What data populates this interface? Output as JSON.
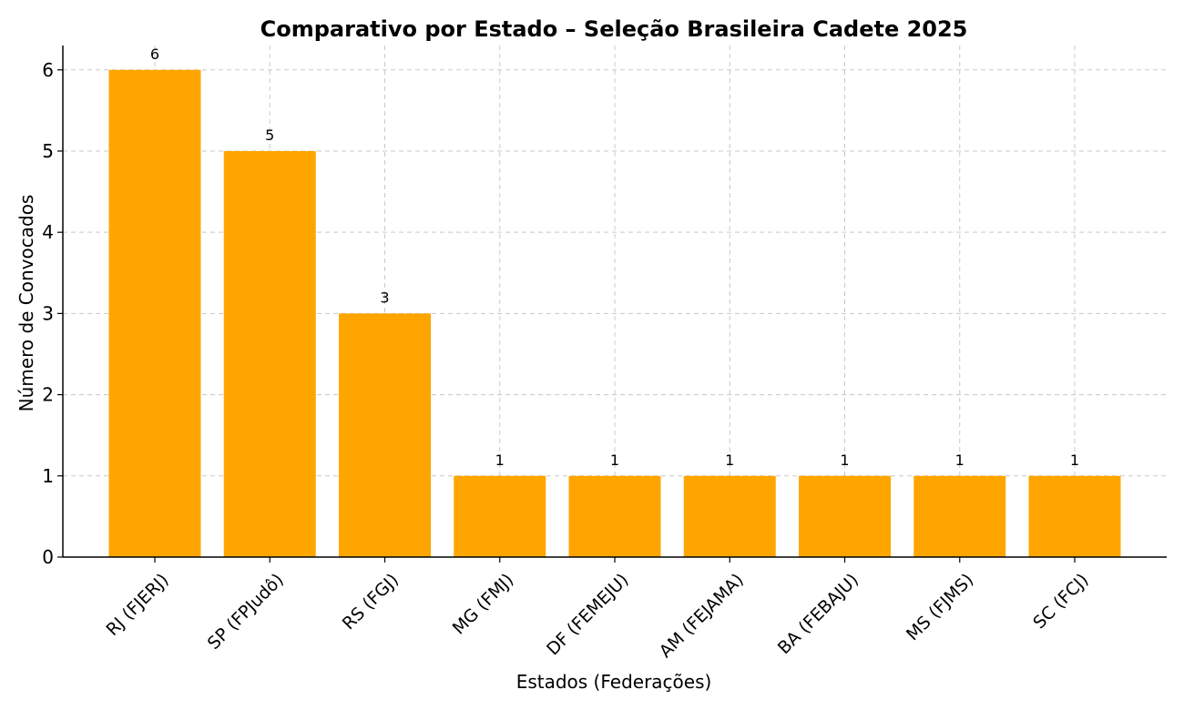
{
  "chart_data": {
    "type": "bar",
    "title": "Comparativo por Estado – Seleção Brasileira Cadete 2025",
    "xlabel": "Estados (Federações)",
    "ylabel": "Número de Convocados",
    "categories": [
      "RJ (FJERJ)",
      "SP (FPJudô)",
      "RS (FGJ)",
      "MG (FMJ)",
      "DF (FEMEJU)",
      "AM (FEJAMA)",
      "BA (FEBAJU)",
      "MS (FJMS)",
      "SC (FCJ)"
    ],
    "values": [
      6,
      5,
      3,
      1,
      1,
      1,
      1,
      1,
      1
    ],
    "ylim": [
      0,
      6.3
    ],
    "yticks": [
      0,
      1,
      2,
      3,
      4,
      5,
      6
    ],
    "grid": true,
    "bar_color": "#ffa500",
    "data_labels": true
  }
}
